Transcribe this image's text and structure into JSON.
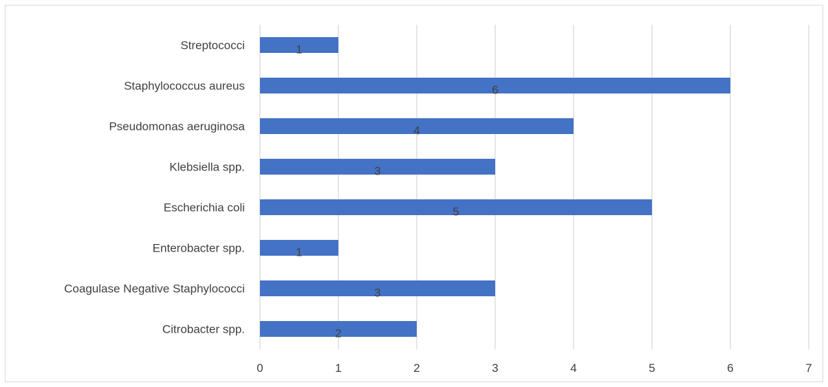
{
  "chart_data": {
    "type": "bar",
    "orientation": "horizontal",
    "categories": [
      "Streptococci",
      "Staphylococcus aureus",
      "Pseudomonas aeruginosa",
      "Klebsiella spp.",
      "Escherichia coli",
      "Enterobacter spp.",
      "Coagulase Negative Staphylococci",
      "Citrobacter spp."
    ],
    "values": [
      1,
      6,
      4,
      3,
      5,
      1,
      3,
      2
    ],
    "data_labels": [
      "1",
      "6",
      "4",
      "3",
      "5",
      "1",
      "3",
      "2"
    ],
    "xlim": [
      0,
      7
    ],
    "x_ticks": [
      "0",
      "1",
      "2",
      "3",
      "4",
      "5",
      "6",
      "7"
    ],
    "grid": "vertical",
    "legend": "none",
    "bar_color": "#4472c4",
    "grid_color": "#d9d9d9",
    "text_color": "#404040"
  }
}
